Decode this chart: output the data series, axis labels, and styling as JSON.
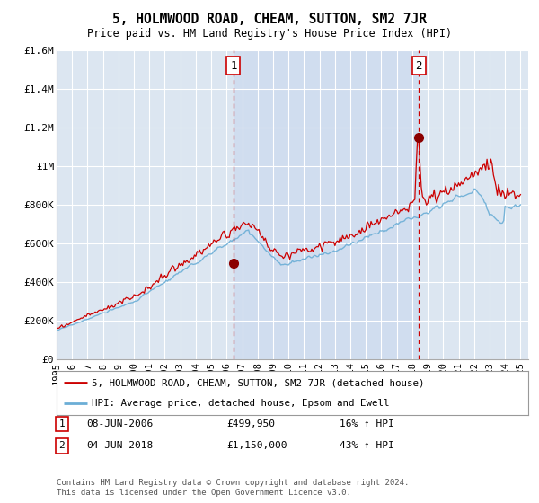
{
  "title": "5, HOLMWOOD ROAD, CHEAM, SUTTON, SM2 7JR",
  "subtitle": "Price paid vs. HM Land Registry's House Price Index (HPI)",
  "ylim": [
    0,
    1600000
  ],
  "yticks": [
    0,
    200000,
    400000,
    600000,
    800000,
    1000000,
    1200000,
    1400000,
    1600000
  ],
  "ytick_labels": [
    "£0",
    "£200K",
    "£400K",
    "£600K",
    "£800K",
    "£1M",
    "£1.2M",
    "£1.4M",
    "£1.6M"
  ],
  "background_color": "#dce6f1",
  "grid_color": "#ffffff",
  "hpi_color": "#6baed6",
  "price_color": "#cc0000",
  "sale1_x": 2006.44,
  "sale1_y": 499950,
  "sale1_label": "1",
  "sale1_date": "08-JUN-2006",
  "sale1_price": "£499,950",
  "sale1_hpi": "16% ↑ HPI",
  "sale2_x": 2018.42,
  "sale2_y": 1150000,
  "sale2_label": "2",
  "sale2_date": "04-JUN-2018",
  "sale2_price": "£1,150,000",
  "sale2_hpi": "43% ↑ HPI",
  "legend_address": "5, HOLMWOOD ROAD, CHEAM, SUTTON, SM2 7JR (detached house)",
  "legend_hpi": "HPI: Average price, detached house, Epsom and Ewell",
  "footer": "Contains HM Land Registry data © Crown copyright and database right 2024.\nThis data is licensed under the Open Government Licence v3.0.",
  "xmin": 1995.0,
  "xmax": 2025.5
}
